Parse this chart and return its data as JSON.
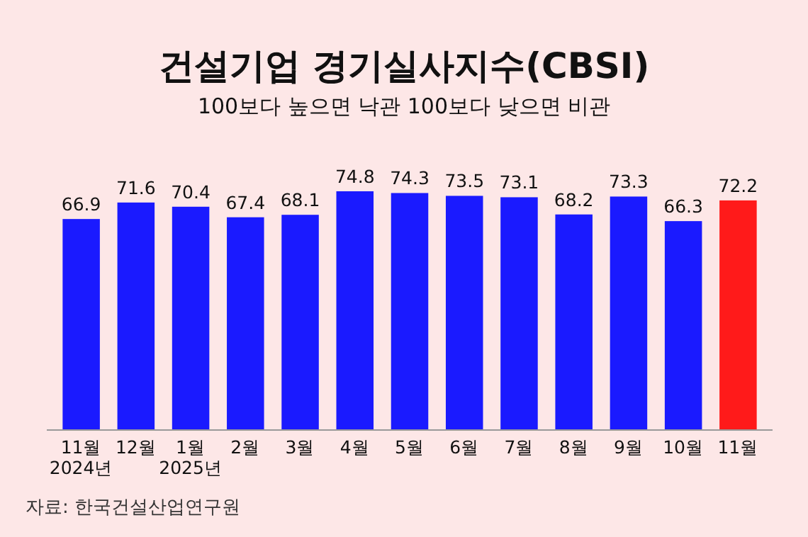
{
  "chart_data": {
    "type": "bar",
    "title": "건설기업 경기실사지수(CBSI)",
    "subtitle": "100보다 높으면 낙관 100보다 낮으면 비관",
    "categories": [
      "11월\n2024년",
      "12월",
      "1월\n2025년",
      "2월",
      "3월",
      "4월",
      "5월",
      "6월",
      "7월",
      "8월",
      "9월",
      "10월",
      "11월"
    ],
    "values": [
      66.9,
      71.6,
      70.4,
      67.4,
      68.1,
      74.8,
      74.3,
      73.5,
      73.1,
      68.2,
      73.3,
      66.3,
      72.2
    ],
    "colors": [
      "#1a1aff",
      "#1a1aff",
      "#1a1aff",
      "#1a1aff",
      "#1a1aff",
      "#1a1aff",
      "#1a1aff",
      "#1a1aff",
      "#1a1aff",
      "#1a1aff",
      "#1a1aff",
      "#1a1aff",
      "#ff1a1a"
    ],
    "ylim": [
      7,
      74.8
    ],
    "data_labels": true,
    "annotations": [
      "자료: 한국건설산업연구원"
    ]
  }
}
